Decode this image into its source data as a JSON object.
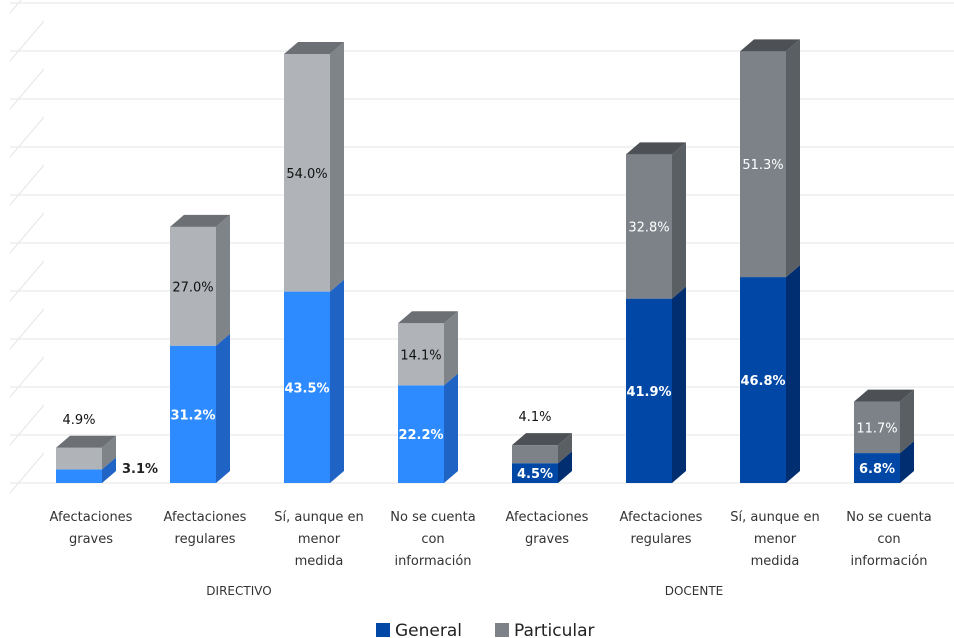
{
  "chart_data": {
    "type": "bar",
    "stacked": true,
    "style": "3d",
    "groups": [
      {
        "name": "DIRECTIVO",
        "categories": [
          [
            "Afectaciones",
            "graves"
          ],
          [
            "Afectaciones",
            "regulares"
          ],
          [
            "Sí, aunque en",
            "menor",
            "medida"
          ],
          [
            "No se cuenta",
            "con",
            "información"
          ]
        ]
      },
      {
        "name": "DOCENTE",
        "categories": [
          [
            "Afectaciones",
            "graves"
          ],
          [
            "Afectaciones",
            "regulares"
          ],
          [
            "Sí, aunque en",
            "menor",
            "medida"
          ],
          [
            "No se cuenta",
            "con",
            "información"
          ]
        ]
      }
    ],
    "series": [
      {
        "name": "General",
        "directivo": [
          3.1,
          31.2,
          43.5,
          22.2
        ],
        "docente": [
          4.5,
          41.9,
          46.8,
          6.8
        ]
      },
      {
        "name": "Particular",
        "directivo": [
          4.9,
          27.0,
          54.0,
          14.1
        ],
        "docente": [
          4.1,
          32.8,
          51.3,
          11.7
        ]
      }
    ],
    "value_labels": {
      "directivo_general": [
        "3.1%",
        "31.2%",
        "43.5%",
        "22.2%"
      ],
      "directivo_particular": [
        "4.9%",
        "27.0%",
        "54.0%",
        "14.1%"
      ],
      "docente_general": [
        "4.5%",
        "41.9%",
        "46.8%",
        "6.8%"
      ],
      "docente_particular": [
        "4.1%",
        "32.8%",
        "51.3%",
        "11.7%"
      ]
    },
    "ylim": [
      0,
      100
    ],
    "grid": true,
    "legend": {
      "position": "bottom",
      "entries": [
        "General",
        "Particular"
      ]
    },
    "colors": {
      "directivo_general": "#2e8bff",
      "directivo_general_side": "#1f64c4",
      "directivo_particular": "#b0b4b8",
      "directivo_particular_side": "#7f8489",
      "docente_general": "#0047a6",
      "docente_general_side": "#002e70",
      "docente_particular": "#7c8288",
      "docente_particular_side": "#5a5f64",
      "legend_general": "#0047a6",
      "legend_particular": "#7c8288",
      "grid": "#e6e6e6"
    }
  }
}
